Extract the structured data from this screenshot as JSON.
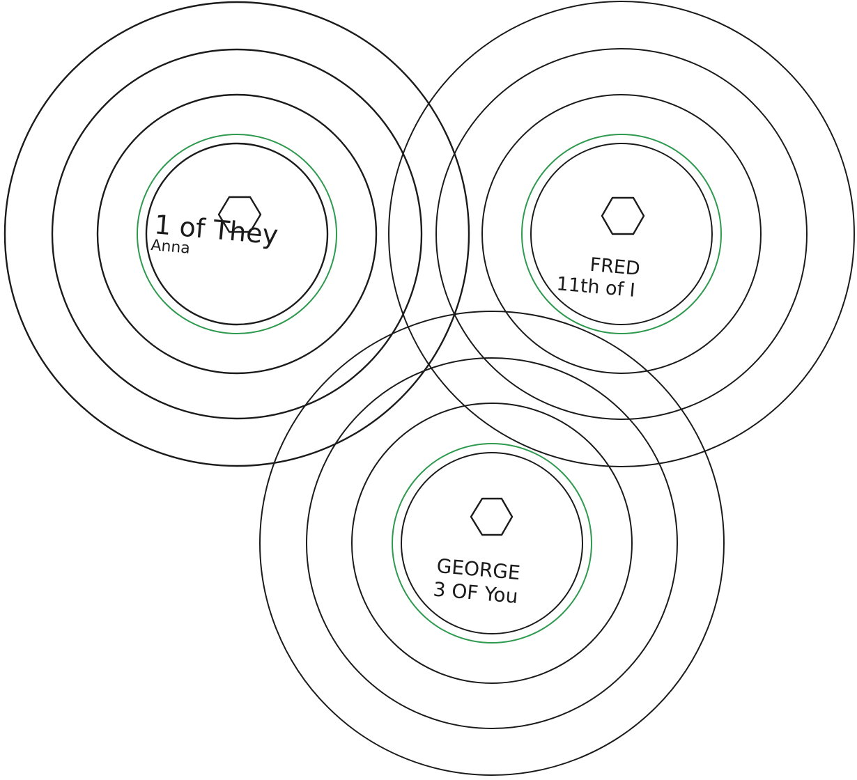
{
  "discs": [
    {
      "id": "anna",
      "name": "Anna",
      "title": "1 of They",
      "icon": "hexagon-icon",
      "accent_color": "#2e9a4f"
    },
    {
      "id": "fred",
      "name": "FRED",
      "title": "11th of I",
      "icon": "hexagon-icon",
      "accent_color": "#2e9a4f"
    },
    {
      "id": "george",
      "name": "GEORGE",
      "title": "3 OF You",
      "icon": "hexagon-icon",
      "accent_color": "#2e9a4f"
    }
  ],
  "colors": {
    "ring": "#1b1b1b",
    "accent": "#2e9a4f",
    "background": "#ffffff"
  }
}
